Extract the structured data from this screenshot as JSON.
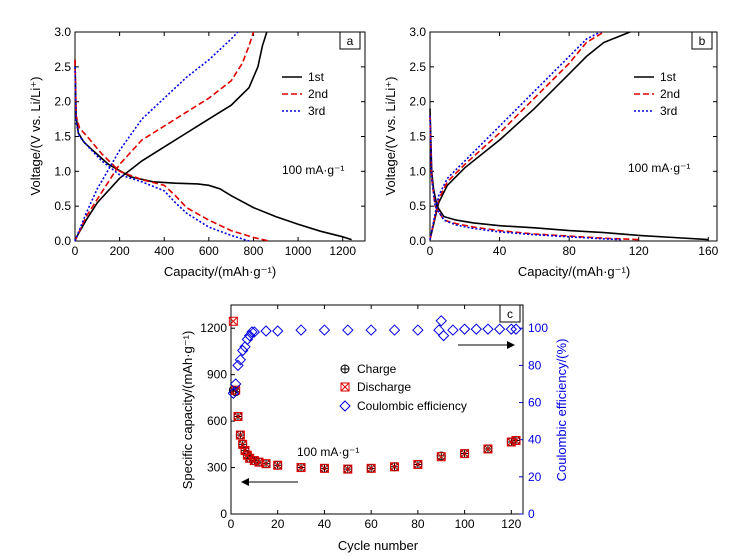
{
  "colors": {
    "c1": "#000000",
    "c2": "#e00000",
    "c3": "#0000e0"
  },
  "chart_data": [
    {
      "type": "line",
      "panel_label": "a",
      "xlabel": "Capacity/(mAh·g⁻¹)",
      "ylabel": "Voltage/(V vs. Li/Li⁺)",
      "xlim": [
        0,
        1300
      ],
      "ylim": [
        0,
        3.0
      ],
      "xticks": [
        0,
        200,
        400,
        600,
        800,
        1000,
        1200
      ],
      "yticks": [
        0.0,
        0.5,
        1.0,
        1.5,
        2.0,
        2.5,
        3.0
      ],
      "annotation": "100 mA·g⁻¹",
      "legend_position": "top-right",
      "series": [
        {
          "name": "1st",
          "style": "solid",
          "color": "#000000",
          "discharge": {
            "x": [
              0,
              5,
              15,
              40,
              80,
              150,
              250,
              350,
              450,
              550,
              600,
              650,
              700,
              800,
              900,
              1000,
              1100,
              1200,
              1240
            ],
            "y": [
              2.6,
              1.8,
              1.55,
              1.42,
              1.3,
              1.1,
              0.92,
              0.85,
              0.83,
              0.82,
              0.8,
              0.75,
              0.65,
              0.48,
              0.35,
              0.24,
              0.14,
              0.06,
              0.02
            ]
          },
          "charge": {
            "x": [
              0,
              50,
              100,
              200,
              300,
              400,
              500,
              600,
              700,
              780,
              820,
              840,
              860
            ],
            "y": [
              0.02,
              0.3,
              0.55,
              0.9,
              1.15,
              1.35,
              1.55,
              1.75,
              1.95,
              2.2,
              2.5,
              2.8,
              3.0
            ]
          }
        },
        {
          "name": "2nd",
          "style": "dashed",
          "color": "#e00000",
          "discharge": {
            "x": [
              0,
              5,
              20,
              60,
              120,
              200,
              300,
              400,
              450,
              500,
              600,
              700,
              800,
              870
            ],
            "y": [
              2.6,
              1.8,
              1.62,
              1.48,
              1.25,
              1.0,
              0.88,
              0.8,
              0.65,
              0.48,
              0.3,
              0.15,
              0.05,
              0.0
            ]
          },
          "charge": {
            "x": [
              0,
              50,
              100,
              200,
              300,
              400,
              500,
              600,
              700,
              750,
              780,
              800
            ],
            "y": [
              0.0,
              0.35,
              0.6,
              1.1,
              1.45,
              1.65,
              1.85,
              2.05,
              2.3,
              2.55,
              2.8,
              3.0
            ]
          }
        },
        {
          "name": "3rd",
          "style": "dotted",
          "color": "#0000e0",
          "discharge": {
            "x": [
              0,
              5,
              20,
              60,
              120,
              200,
              300,
              400,
              450,
              500,
              600,
              700,
              780
            ],
            "y": [
              2.5,
              1.7,
              1.5,
              1.35,
              1.15,
              0.95,
              0.85,
              0.72,
              0.55,
              0.4,
              0.2,
              0.08,
              0.0
            ]
          },
          "charge": {
            "x": [
              0,
              50,
              100,
              200,
              300,
              400,
              500,
              600,
              650,
              700,
              730
            ],
            "y": [
              0.0,
              0.4,
              0.75,
              1.3,
              1.75,
              2.05,
              2.35,
              2.6,
              2.75,
              2.9,
              3.0
            ]
          }
        }
      ]
    },
    {
      "type": "line",
      "panel_label": "b",
      "xlabel": "Capacity/(mAh·g⁻¹)",
      "ylabel": "Voltage/(V vs. Li/Li⁺)",
      "xlim": [
        0,
        165
      ],
      "ylim": [
        0,
        3.0
      ],
      "xticks": [
        0,
        40,
        80,
        120,
        160
      ],
      "yticks": [
        0.0,
        0.5,
        1.0,
        1.5,
        2.0,
        2.5,
        3.0
      ],
      "annotation": "100 mA·g⁻¹",
      "legend_position": "top-right",
      "series": [
        {
          "name": "1st",
          "style": "solid",
          "color": "#000000",
          "discharge": {
            "x": [
              0,
              1,
              2,
              4,
              8,
              15,
              25,
              40,
              60,
              80,
              100,
              120,
              140,
              160
            ],
            "y": [
              1.9,
              1.0,
              0.75,
              0.5,
              0.35,
              0.3,
              0.26,
              0.22,
              0.19,
              0.15,
              0.12,
              0.08,
              0.05,
              0.02
            ]
          },
          "charge": {
            "x": [
              0,
              5,
              10,
              20,
              40,
              60,
              80,
              90,
              100,
              110,
              115
            ],
            "y": [
              0.02,
              0.55,
              0.8,
              1.05,
              1.45,
              1.9,
              2.4,
              2.65,
              2.85,
              2.95,
              3.0
            ]
          }
        },
        {
          "name": "2nd",
          "style": "dashed",
          "color": "#e00000",
          "discharge": {
            "x": [
              0,
              1,
              3,
              8,
              15,
              25,
              40,
              60,
              80,
              100,
              120
            ],
            "y": [
              1.8,
              0.9,
              0.5,
              0.3,
              0.25,
              0.2,
              0.15,
              0.1,
              0.07,
              0.04,
              0.02
            ]
          },
          "charge": {
            "x": [
              0,
              5,
              10,
              20,
              40,
              60,
              80,
              90,
              100
            ],
            "y": [
              0.02,
              0.6,
              0.85,
              1.1,
              1.55,
              2.05,
              2.55,
              2.85,
              3.0
            ]
          }
        },
        {
          "name": "3rd",
          "style": "dotted",
          "color": "#0000e0",
          "discharge": {
            "x": [
              0,
              1,
              3,
              8,
              15,
              25,
              40,
              60,
              80,
              100,
              110
            ],
            "y": [
              1.8,
              0.9,
              0.5,
              0.3,
              0.23,
              0.18,
              0.13,
              0.09,
              0.06,
              0.03,
              0.02
            ]
          },
          "charge": {
            "x": [
              0,
              5,
              10,
              20,
              40,
              60,
              80,
              90,
              98
            ],
            "y": [
              0.02,
              0.65,
              0.9,
              1.15,
              1.65,
              2.15,
              2.65,
              2.9,
              3.0
            ]
          }
        }
      ]
    },
    {
      "type": "scatter",
      "panel_label": "c",
      "xlabel": "Cycle number",
      "ylabel": "Specific capacity/(mAh·g⁻¹)",
      "ylabel_right": "Coulombic efficiency/(%)",
      "xlim": [
        0,
        125
      ],
      "ylim": [
        0,
        1350
      ],
      "ylim_right": [
        0,
        112.5
      ],
      "xticks": [
        0,
        20,
        40,
        60,
        80,
        100,
        120
      ],
      "yticks": [
        0,
        300,
        600,
        900,
        1200
      ],
      "yticks_right": [
        0,
        20,
        40,
        60,
        80,
        100
      ],
      "annotation": "100 mA·g⁻¹",
      "legend_position": "center-left",
      "arrows": [
        "left",
        "right"
      ],
      "series": [
        {
          "name": "Charge",
          "axis": "left",
          "marker": "circle-plus",
          "color": "#000000",
          "points": [
            [
              1,
              800
            ],
            [
              2,
              790
            ],
            [
              3,
              630
            ],
            [
              4,
              510
            ],
            [
              5,
              450
            ],
            [
              6,
              410
            ],
            [
              7,
              380
            ],
            [
              8,
              360
            ],
            [
              10,
              345
            ],
            [
              12,
              335
            ],
            [
              15,
              325
            ],
            [
              20,
              315
            ],
            [
              30,
              300
            ],
            [
              40,
              295
            ],
            [
              50,
              290
            ],
            [
              60,
              295
            ],
            [
              70,
              305
            ],
            [
              80,
              320
            ],
            [
              90,
              375
            ],
            [
              100,
              390
            ],
            [
              110,
              420
            ],
            [
              120,
              465
            ],
            [
              122,
              475
            ]
          ]
        },
        {
          "name": "Discharge",
          "axis": "left",
          "marker": "square-x",
          "color": "#e00000",
          "points": [
            [
              1,
              1245
            ],
            [
              2,
              800
            ],
            [
              3,
              630
            ],
            [
              4,
              510
            ],
            [
              5,
              450
            ],
            [
              6,
              410
            ],
            [
              7,
              380
            ],
            [
              8,
              360
            ],
            [
              10,
              345
            ],
            [
              12,
              335
            ],
            [
              15,
              325
            ],
            [
              20,
              315
            ],
            [
              30,
              300
            ],
            [
              40,
              295
            ],
            [
              50,
              290
            ],
            [
              60,
              295
            ],
            [
              70,
              305
            ],
            [
              80,
              320
            ],
            [
              90,
              370
            ],
            [
              100,
              390
            ],
            [
              110,
              420
            ],
            [
              120,
              465
            ],
            [
              122,
              475
            ]
          ]
        },
        {
          "name": "Coulombic efficiency",
          "axis": "right",
          "marker": "diamond",
          "color": "#0000e0",
          "points": [
            [
              1,
              65
            ],
            [
              2,
              70
            ],
            [
              3,
              80
            ],
            [
              4,
              83
            ],
            [
              5,
              88
            ],
            [
              6,
              90
            ],
            [
              7,
              94
            ],
            [
              8,
              96
            ],
            [
              9,
              98
            ],
            [
              10,
              98
            ],
            [
              15,
              98.5
            ],
            [
              20,
              98.5
            ],
            [
              30,
              99
            ],
            [
              40,
              99
            ],
            [
              50,
              99
            ],
            [
              60,
              99
            ],
            [
              70,
              99
            ],
            [
              80,
              99
            ],
            [
              89,
              99
            ],
            [
              90,
              104
            ],
            [
              91,
              96
            ],
            [
              95,
              99
            ],
            [
              100,
              99.5
            ],
            [
              105,
              99.5
            ],
            [
              110,
              99.5
            ],
            [
              115,
              99.5
            ],
            [
              120,
              99.5
            ],
            [
              122,
              99.5
            ]
          ]
        }
      ]
    }
  ]
}
